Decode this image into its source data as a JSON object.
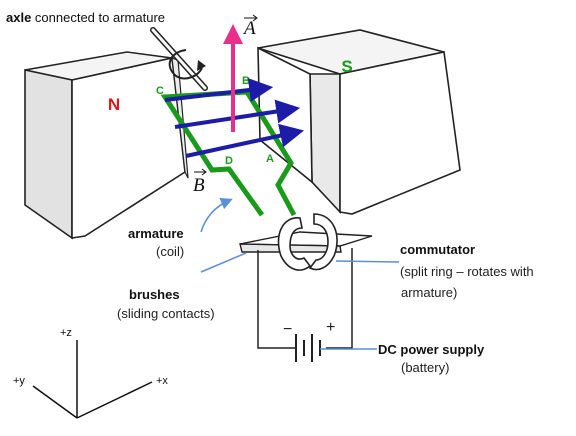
{
  "labels": {
    "axle_bold": "axle",
    "axle_rest": " connected to armature",
    "vector_A": "A",
    "vector_B": "B",
    "pole_N": "N",
    "pole_S": "S",
    "armature_bold": "armature",
    "armature_sub": "(coil)",
    "commutator_bold": "commutator",
    "commutator_sub1": "(split ring – rotates with",
    "commutator_sub2": "armature)",
    "brushes_bold": "brushes",
    "brushes_sub": "(sliding contacts)",
    "dc_bold": "DC power supply",
    "dc_sub": "(battery)",
    "battery_minus": "−",
    "battery_plus": "+"
  },
  "coil_points": {
    "A": "A",
    "B": "B",
    "C": "C",
    "D": "D"
  },
  "axes": {
    "z": "+z",
    "y": "+y",
    "x": "+x"
  },
  "colors": {
    "coil": "#1a9a1a",
    "field_arrows": "#1c1ca8",
    "force_arrow": "#e8308a",
    "pole_label": "#e01818",
    "pointer": "#5b8fd6"
  }
}
